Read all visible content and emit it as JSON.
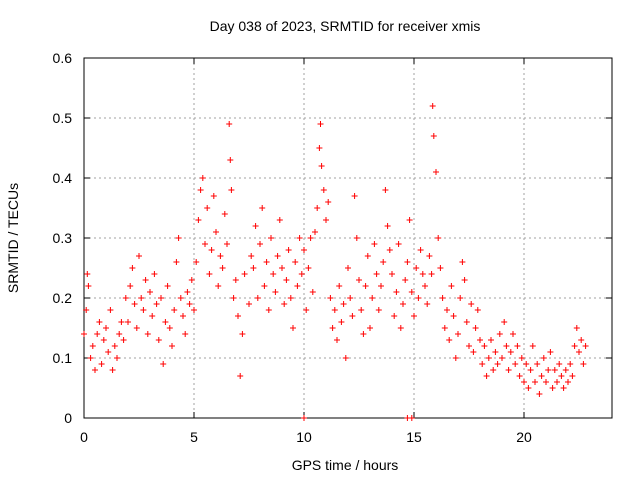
{
  "chart_data": {
    "type": "scatter",
    "title": "Day 038 of 2023, SRMTID for receiver xmis",
    "xlabel": "GPS time / hours",
    "ylabel": "SRMTID / TECUs",
    "xlim": [
      0,
      24
    ],
    "ylim": [
      0,
      0.6
    ],
    "xticks": [
      0,
      5,
      10,
      15,
      20
    ],
    "xtick_labels": [
      "0",
      "5",
      "10",
      "15",
      "20"
    ],
    "yticks": [
      0,
      0.1,
      0.2,
      0.3,
      0.4,
      0.5,
      0.6
    ],
    "ytick_labels": [
      "0",
      "0.1",
      "0.2",
      "0.3",
      "0.4",
      "0.5",
      "0.6"
    ],
    "grid": true,
    "marker": "+",
    "color": "#ff0000",
    "series": [
      {
        "name": "SRMTID",
        "points": [
          [
            0.0,
            0.14
          ],
          [
            0.1,
            0.18
          ],
          [
            0.15,
            0.24
          ],
          [
            0.2,
            0.22
          ],
          [
            0.3,
            0.1
          ],
          [
            0.4,
            0.12
          ],
          [
            0.5,
            0.08
          ],
          [
            0.6,
            0.14
          ],
          [
            0.7,
            0.16
          ],
          [
            0.8,
            0.09
          ],
          [
            0.9,
            0.13
          ],
          [
            1.0,
            0.15
          ],
          [
            1.1,
            0.11
          ],
          [
            1.2,
            0.18
          ],
          [
            1.3,
            0.08
          ],
          [
            1.4,
            0.12
          ],
          [
            1.5,
            0.1
          ],
          [
            1.6,
            0.14
          ],
          [
            1.7,
            0.16
          ],
          [
            1.8,
            0.13
          ],
          [
            1.9,
            0.2
          ],
          [
            2.0,
            0.16
          ],
          [
            2.1,
            0.22
          ],
          [
            2.2,
            0.25
          ],
          [
            2.3,
            0.19
          ],
          [
            2.4,
            0.15
          ],
          [
            2.5,
            0.27
          ],
          [
            2.6,
            0.2
          ],
          [
            2.7,
            0.18
          ],
          [
            2.8,
            0.23
          ],
          [
            2.9,
            0.14
          ],
          [
            3.0,
            0.21
          ],
          [
            3.1,
            0.17
          ],
          [
            3.2,
            0.24
          ],
          [
            3.3,
            0.19
          ],
          [
            3.4,
            0.13
          ],
          [
            3.5,
            0.2
          ],
          [
            3.6,
            0.09
          ],
          [
            3.7,
            0.16
          ],
          [
            3.8,
            0.22
          ],
          [
            3.9,
            0.15
          ],
          [
            4.0,
            0.12
          ],
          [
            4.1,
            0.18
          ],
          [
            4.2,
            0.26
          ],
          [
            4.3,
            0.3
          ],
          [
            4.4,
            0.2
          ],
          [
            4.5,
            0.17
          ],
          [
            4.6,
            0.14
          ],
          [
            4.7,
            0.21
          ],
          [
            4.8,
            0.19
          ],
          [
            4.9,
            0.23
          ],
          [
            5.0,
            0.18
          ],
          [
            5.1,
            0.26
          ],
          [
            5.2,
            0.33
          ],
          [
            5.3,
            0.38
          ],
          [
            5.4,
            0.4
          ],
          [
            5.5,
            0.29
          ],
          [
            5.6,
            0.35
          ],
          [
            5.7,
            0.24
          ],
          [
            5.8,
            0.28
          ],
          [
            5.9,
            0.37
          ],
          [
            6.0,
            0.31
          ],
          [
            6.1,
            0.22
          ],
          [
            6.2,
            0.27
          ],
          [
            6.3,
            0.25
          ],
          [
            6.4,
            0.34
          ],
          [
            6.5,
            0.29
          ],
          [
            6.6,
            0.49
          ],
          [
            6.65,
            0.43
          ],
          [
            6.7,
            0.38
          ],
          [
            6.8,
            0.2
          ],
          [
            6.9,
            0.23
          ],
          [
            7.0,
            0.17
          ],
          [
            7.1,
            0.07
          ],
          [
            7.2,
            0.14
          ],
          [
            7.3,
            0.24
          ],
          [
            7.5,
            0.19
          ],
          [
            7.6,
            0.27
          ],
          [
            7.7,
            0.25
          ],
          [
            7.8,
            0.32
          ],
          [
            7.9,
            0.2
          ],
          [
            8.0,
            0.29
          ],
          [
            8.1,
            0.35
          ],
          [
            8.2,
            0.22
          ],
          [
            8.3,
            0.26
          ],
          [
            8.4,
            0.18
          ],
          [
            8.5,
            0.3
          ],
          [
            8.6,
            0.24
          ],
          [
            8.7,
            0.21
          ],
          [
            8.8,
            0.27
          ],
          [
            8.9,
            0.33
          ],
          [
            9.0,
            0.25
          ],
          [
            9.1,
            0.19
          ],
          [
            9.2,
            0.23
          ],
          [
            9.3,
            0.28
          ],
          [
            9.4,
            0.2
          ],
          [
            9.5,
            0.15
          ],
          [
            9.6,
            0.26
          ],
          [
            9.7,
            0.22
          ],
          [
            9.8,
            0.3
          ],
          [
            9.9,
            0.24
          ],
          [
            10.0,
            0.28
          ],
          [
            10.1,
            0.18
          ],
          [
            10.2,
            0.25
          ],
          [
            10.3,
            0.3
          ],
          [
            10.4,
            0.21
          ],
          [
            10.5,
            0.31
          ],
          [
            10.6,
            0.35
          ],
          [
            10.7,
            0.45
          ],
          [
            10.75,
            0.49
          ],
          [
            10.8,
            0.42
          ],
          [
            10.9,
            0.38
          ],
          [
            11.0,
            0.33
          ],
          [
            11.1,
            0.36
          ],
          [
            11.2,
            0.2
          ],
          [
            11.3,
            0.15
          ],
          [
            11.4,
            0.18
          ],
          [
            11.5,
            0.13
          ],
          [
            11.6,
            0.22
          ],
          [
            11.7,
            0.16
          ],
          [
            11.8,
            0.19
          ],
          [
            11.9,
            0.1
          ],
          [
            12.0,
            0.25
          ],
          [
            12.1,
            0.2
          ],
          [
            12.2,
            0.17
          ],
          [
            12.3,
            0.37
          ],
          [
            12.4,
            0.3
          ],
          [
            12.5,
            0.23
          ],
          [
            12.6,
            0.18
          ],
          [
            12.7,
            0.14
          ],
          [
            12.8,
            0.22
          ],
          [
            12.9,
            0.27
          ],
          [
            13.0,
            0.15
          ],
          [
            13.1,
            0.2
          ],
          [
            13.2,
            0.29
          ],
          [
            13.3,
            0.24
          ],
          [
            13.4,
            0.18
          ],
          [
            13.5,
            0.22
          ],
          [
            13.6,
            0.26
          ],
          [
            13.7,
            0.38
          ],
          [
            13.8,
            0.32
          ],
          [
            13.9,
            0.28
          ],
          [
            14.0,
            0.24
          ],
          [
            14.1,
            0.17
          ],
          [
            14.2,
            0.21
          ],
          [
            14.3,
            0.29
          ],
          [
            14.4,
            0.15
          ],
          [
            14.5,
            0.19
          ],
          [
            14.6,
            0.23
          ],
          [
            14.7,
            0.26
          ],
          [
            14.8,
            0.33
          ],
          [
            14.9,
            0.21
          ],
          [
            15.0,
            0.17
          ],
          [
            15.1,
            0.25
          ],
          [
            15.2,
            0.2
          ],
          [
            15.3,
            0.28
          ],
          [
            15.4,
            0.24
          ],
          [
            15.5,
            0.22
          ],
          [
            15.6,
            0.19
          ],
          [
            15.7,
            0.27
          ],
          [
            15.8,
            0.24
          ],
          [
            15.85,
            0.52
          ],
          [
            15.9,
            0.47
          ],
          [
            16.0,
            0.41
          ],
          [
            16.1,
            0.3
          ],
          [
            16.2,
            0.25
          ],
          [
            16.3,
            0.2
          ],
          [
            16.4,
            0.15
          ],
          [
            16.5,
            0.18
          ],
          [
            16.6,
            0.13
          ],
          [
            16.7,
            0.22
          ],
          [
            16.8,
            0.17
          ],
          [
            16.9,
            0.1
          ],
          [
            17.0,
            0.14
          ],
          [
            17.1,
            0.2
          ],
          [
            17.2,
            0.26
          ],
          [
            17.3,
            0.23
          ],
          [
            17.4,
            0.16
          ],
          [
            17.5,
            0.12
          ],
          [
            17.6,
            0.19
          ],
          [
            17.7,
            0.11
          ],
          [
            17.8,
            0.15
          ],
          [
            17.9,
            0.18
          ],
          [
            18.0,
            0.13
          ],
          [
            18.1,
            0.09
          ],
          [
            18.2,
            0.12
          ],
          [
            18.3,
            0.07
          ],
          [
            18.4,
            0.1
          ],
          [
            18.5,
            0.13
          ],
          [
            18.6,
            0.08
          ],
          [
            18.7,
            0.11
          ],
          [
            18.8,
            0.09
          ],
          [
            18.9,
            0.14
          ],
          [
            19.0,
            0.1
          ],
          [
            19.1,
            0.16
          ],
          [
            19.2,
            0.12
          ],
          [
            19.3,
            0.08
          ],
          [
            19.4,
            0.11
          ],
          [
            19.5,
            0.14
          ],
          [
            19.6,
            0.09
          ],
          [
            19.7,
            0.12
          ],
          [
            19.8,
            0.07
          ],
          [
            19.9,
            0.1
          ],
          [
            20.0,
            0.06
          ],
          [
            20.1,
            0.09
          ],
          [
            20.2,
            0.05
          ],
          [
            20.3,
            0.08
          ],
          [
            20.4,
            0.12
          ],
          [
            20.5,
            0.06
          ],
          [
            20.6,
            0.09
          ],
          [
            20.7,
            0.04
          ],
          [
            20.8,
            0.07
          ],
          [
            20.9,
            0.1
          ],
          [
            21.0,
            0.06
          ],
          [
            21.1,
            0.08
          ],
          [
            21.2,
            0.11
          ],
          [
            21.3,
            0.05
          ],
          [
            21.4,
            0.08
          ],
          [
            21.5,
            0.06
          ],
          [
            21.6,
            0.09
          ],
          [
            21.7,
            0.07
          ],
          [
            21.8,
            0.05
          ],
          [
            21.9,
            0.08
          ],
          [
            22.0,
            0.06
          ],
          [
            22.1,
            0.09
          ],
          [
            22.2,
            0.07
          ],
          [
            22.3,
            0.12
          ],
          [
            22.4,
            0.15
          ],
          [
            22.5,
            0.11
          ],
          [
            22.6,
            0.13
          ],
          [
            22.7,
            0.09
          ],
          [
            22.8,
            0.12
          ],
          [
            10.0,
            0.0
          ],
          [
            14.7,
            0.0
          ],
          [
            14.9,
            0.0
          ]
        ]
      }
    ]
  }
}
